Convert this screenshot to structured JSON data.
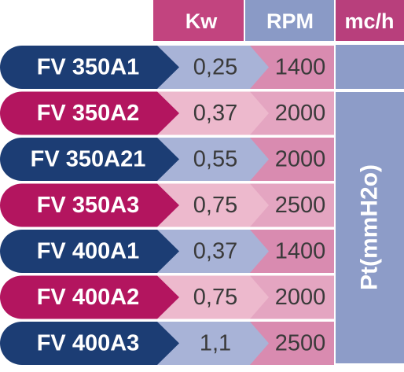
{
  "header": {
    "columns": [
      "Kw",
      "RPM",
      "mc/h"
    ]
  },
  "side_label": "Pt(mmH2o)",
  "table": {
    "rows": [
      [
        "FV 350A1",
        "0,25",
        "1400"
      ],
      [
        "FV 350A2",
        "0,37",
        "2000"
      ],
      [
        "FV 350A21",
        "0,55",
        "2000"
      ],
      [
        "FV 350A3",
        "0,75",
        "2500"
      ],
      [
        "FV 400A1",
        "0,37",
        "1400"
      ],
      [
        "FV 400A2",
        "0,75",
        "2000"
      ],
      [
        "FV 400A3",
        "1,1",
        "2500"
      ]
    ]
  }
}
